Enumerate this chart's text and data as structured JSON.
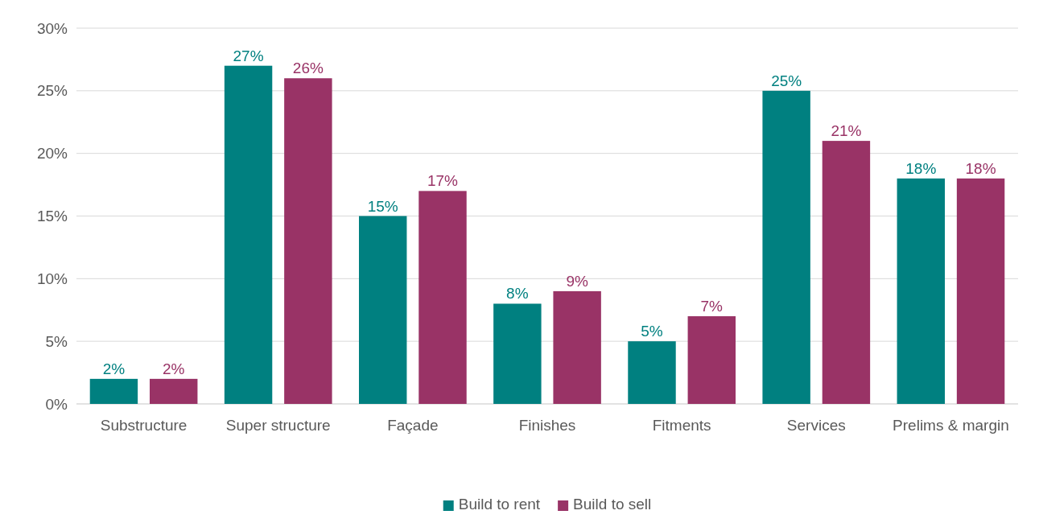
{
  "chart_data": {
    "type": "bar",
    "categories": [
      "Substructure",
      "Super structure",
      "Façade",
      "Finishes",
      "Fitments",
      "Services",
      "Prelims & margin"
    ],
    "series": [
      {
        "name": "Build to rent",
        "color": "#008080",
        "values": [
          2,
          27,
          15,
          8,
          5,
          25,
          18
        ],
        "value_labels": [
          "2%",
          "27%",
          "15%",
          "8%",
          "5%",
          "25%",
          "18%"
        ]
      },
      {
        "name": "Build to sell",
        "color": "#993366",
        "values": [
          2,
          26,
          17,
          9,
          7,
          21,
          18
        ],
        "value_labels": [
          "2%",
          "26%",
          "17%",
          "9%",
          "7%",
          "21%",
          "18%"
        ]
      }
    ],
    "ylim": [
      0,
      30
    ],
    "yticks": [
      {
        "value": 0,
        "label": "0%"
      },
      {
        "value": 5,
        "label": "5%"
      },
      {
        "value": 10,
        "label": "10%"
      },
      {
        "value": 15,
        "label": "15%"
      },
      {
        "value": 20,
        "label": "20%"
      },
      {
        "value": 25,
        "label": "25%"
      },
      {
        "value": 30,
        "label": "30%"
      }
    ],
    "grid": "y",
    "legend": "bottom"
  }
}
